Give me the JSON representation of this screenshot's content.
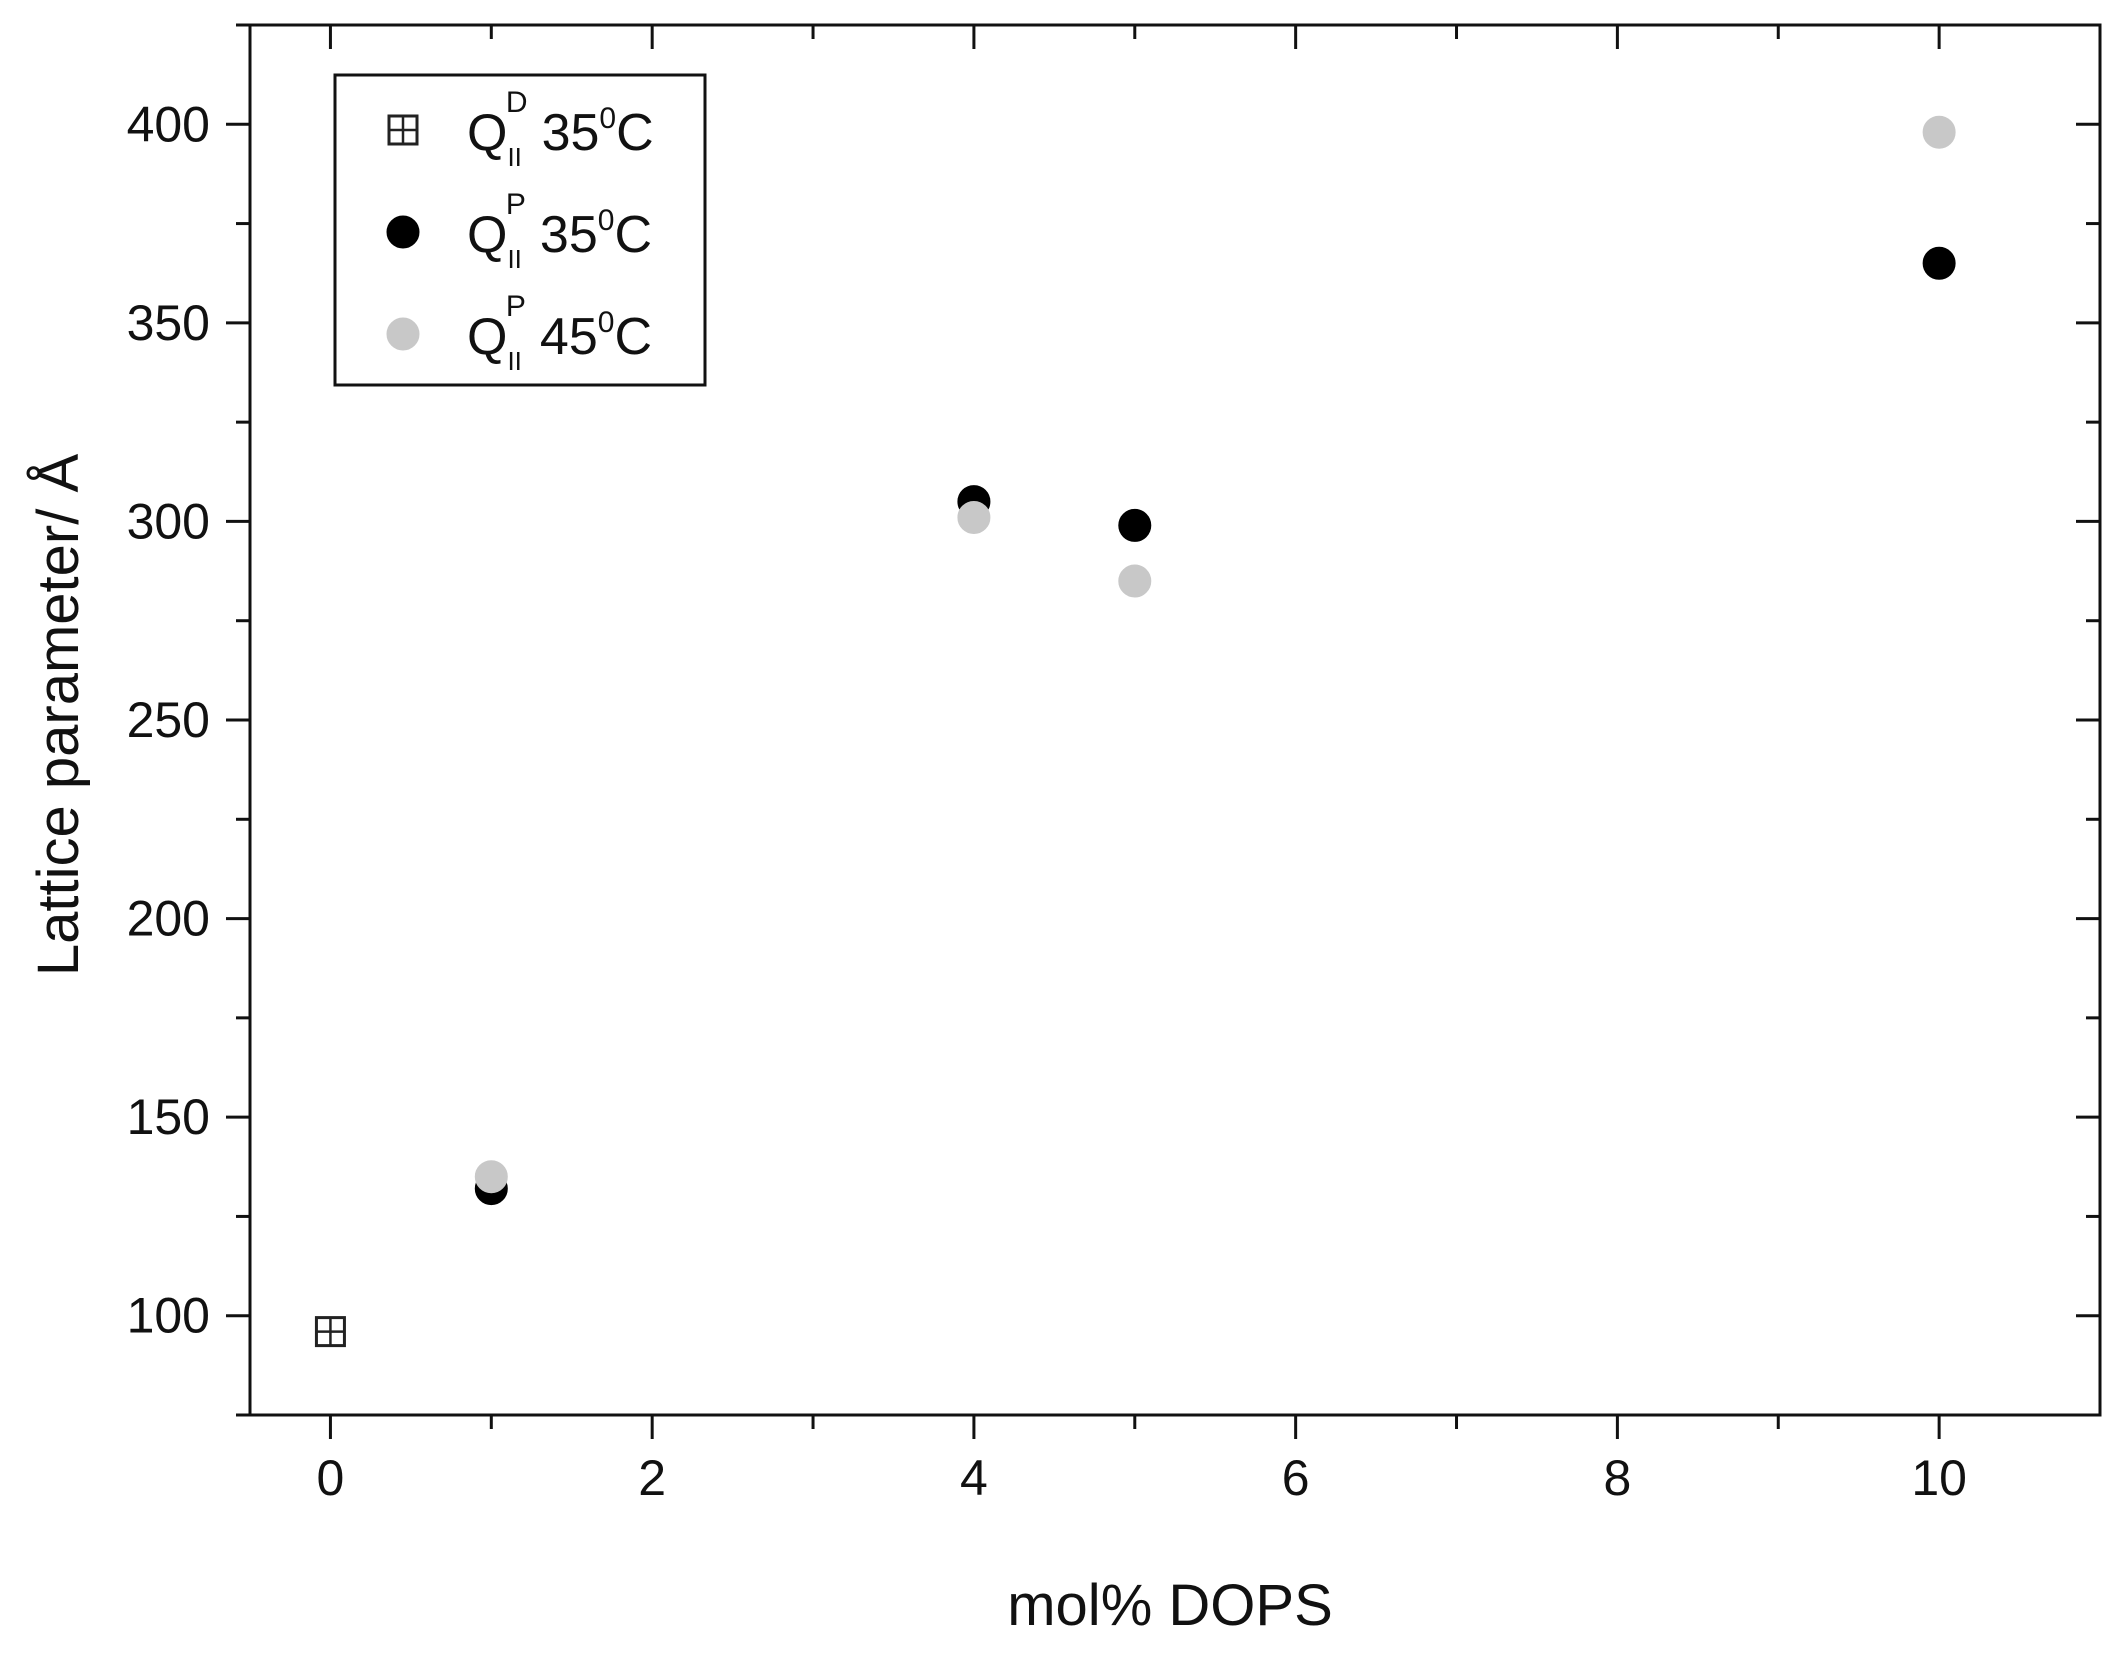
{
  "chart_data": {
    "type": "scatter",
    "title": "",
    "xlabel": "mol% DOPS",
    "ylabel": "Lattice parameter/ Å",
    "xlim": [
      -0.5,
      11
    ],
    "ylim": [
      75,
      425
    ],
    "xticks": [
      0,
      2,
      4,
      6,
      8,
      10
    ],
    "yticks": [
      100,
      150,
      200,
      250,
      300,
      350,
      400
    ],
    "grid": false,
    "legend_position": "top-left",
    "series": [
      {
        "label_main": "Q",
        "label_sub": "II",
        "label_sup": "D",
        "label_temp": "35",
        "label_deg": "0",
        "label_unit": "C",
        "marker": "square-cross",
        "color": "#ffffff",
        "edge_color": "#222222",
        "points": [
          {
            "x": 0,
            "y": 96
          }
        ]
      },
      {
        "label_main": "Q",
        "label_sub": "II",
        "label_sup": "P",
        "label_temp": "35",
        "label_deg": "0",
        "label_unit": "C",
        "marker": "circle",
        "color": "#000000",
        "edge_color": "#000000",
        "points": [
          {
            "x": 1,
            "y": 132
          },
          {
            "x": 4,
            "y": 305
          },
          {
            "x": 5,
            "y": 299
          },
          {
            "x": 10,
            "y": 365
          }
        ]
      },
      {
        "label_main": "Q",
        "label_sub": "II",
        "label_sup": "P",
        "label_temp": "45",
        "label_deg": "0",
        "label_unit": "C",
        "marker": "circle",
        "color": "#c8c8c8",
        "edge_color": "#c8c8c8",
        "points": [
          {
            "x": 1,
            "y": 135
          },
          {
            "x": 4,
            "y": 301
          },
          {
            "x": 5,
            "y": 285
          },
          {
            "x": 10,
            "y": 398
          }
        ]
      }
    ]
  }
}
